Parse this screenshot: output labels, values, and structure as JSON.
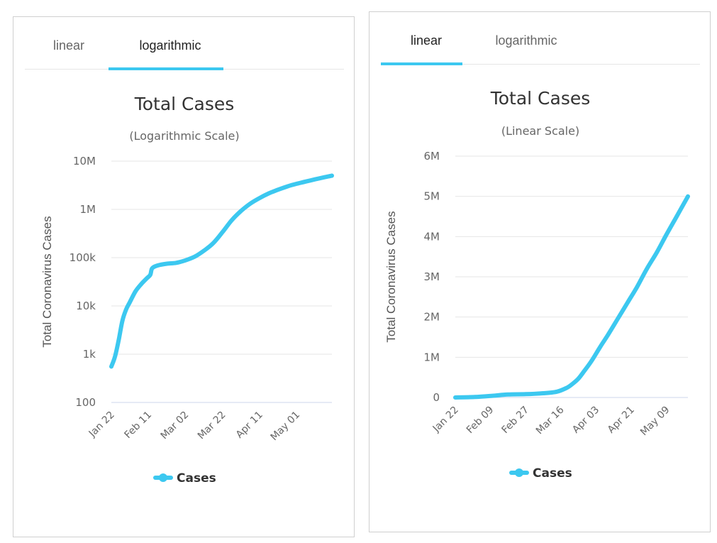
{
  "tabs": {
    "linear": "linear",
    "logarithmic": "logarithmic"
  },
  "colors": {
    "series": "#3cc8f0",
    "grid": "#e6e6e6",
    "axis": "#ccd6eb"
  },
  "chart_data": [
    {
      "type": "line",
      "title": "Total Cases",
      "subtitle": "(Logarithmic Scale)",
      "ylabel": "Total Coronavirus Cases",
      "yscale": "log",
      "ylim": [
        100,
        10000000
      ],
      "yticks": [
        100,
        1000,
        10000,
        100000,
        1000000,
        10000000
      ],
      "ytick_labels": [
        "100",
        "1k",
        "10k",
        "100k",
        "1M",
        "10M"
      ],
      "xticks": [
        "Jan 22",
        "Feb 11",
        "Mar 02",
        "Mar 22",
        "Apr 11",
        "May 01"
      ],
      "active_tab": "logarithmic",
      "legend": "bottom-center",
      "series": [
        {
          "name": "Cases",
          "x": [
            "Jan 22",
            "Jan 24",
            "Jan 26",
            "Jan 28",
            "Jan 30",
            "Feb 01",
            "Feb 04",
            "Feb 07",
            "Feb 10",
            "Feb 12",
            "Feb 13",
            "Feb 16",
            "Feb 21",
            "Feb 26",
            "Mar 02",
            "Mar 07",
            "Mar 12",
            "Mar 17",
            "Mar 22",
            "Mar 27",
            "Apr 01",
            "Apr 06",
            "Apr 11",
            "Apr 16",
            "Apr 21",
            "Apr 26",
            "May 01",
            "May 06",
            "May 11",
            "May 16",
            "May 20"
          ],
          "y": [
            555,
            900,
            2000,
            5000,
            8500,
            12000,
            20000,
            28000,
            37000,
            44000,
            60000,
            69000,
            75000,
            78000,
            88000,
            105000,
            140000,
            200000,
            340000,
            600000,
            930000,
            1320000,
            1720000,
            2150000,
            2560000,
            3000000,
            3400000,
            3780000,
            4200000,
            4630000,
            5000000
          ]
        }
      ]
    },
    {
      "type": "line",
      "title": "Total Cases",
      "subtitle": "(Linear Scale)",
      "ylabel": "Total Coronavirus Cases",
      "yscale": "linear",
      "ylim": [
        0,
        6000000
      ],
      "yticks": [
        0,
        1000000,
        2000000,
        3000000,
        4000000,
        5000000,
        6000000
      ],
      "ytick_labels": [
        "0",
        "1M",
        "2M",
        "3M",
        "4M",
        "5M",
        "6M"
      ],
      "xticks": [
        "Jan 22",
        "Feb 09",
        "Feb 27",
        "Mar 16",
        "Apr 03",
        "Apr 21",
        "May 09"
      ],
      "active_tab": "linear",
      "legend": "bottom-center",
      "series": [
        {
          "name": "Cases",
          "x": [
            "Jan 22",
            "Feb 01",
            "Feb 10",
            "Feb 18",
            "Feb 27",
            "Mar 07",
            "Mar 14",
            "Mar 19",
            "Mar 22",
            "Mar 25",
            "Mar 28",
            "Apr 01",
            "Apr 05",
            "Apr 09",
            "Apr 14",
            "Apr 19",
            "Apr 24",
            "Apr 29",
            "May 04",
            "May 09",
            "May 14",
            "May 20"
          ],
          "y": [
            555,
            12000,
            43000,
            75000,
            83000,
            105000,
            145000,
            240000,
            340000,
            470000,
            660000,
            930000,
            1250000,
            1550000,
            1950000,
            2350000,
            2750000,
            3200000,
            3600000,
            4050000,
            4480000,
            5000000
          ]
        }
      ]
    }
  ]
}
